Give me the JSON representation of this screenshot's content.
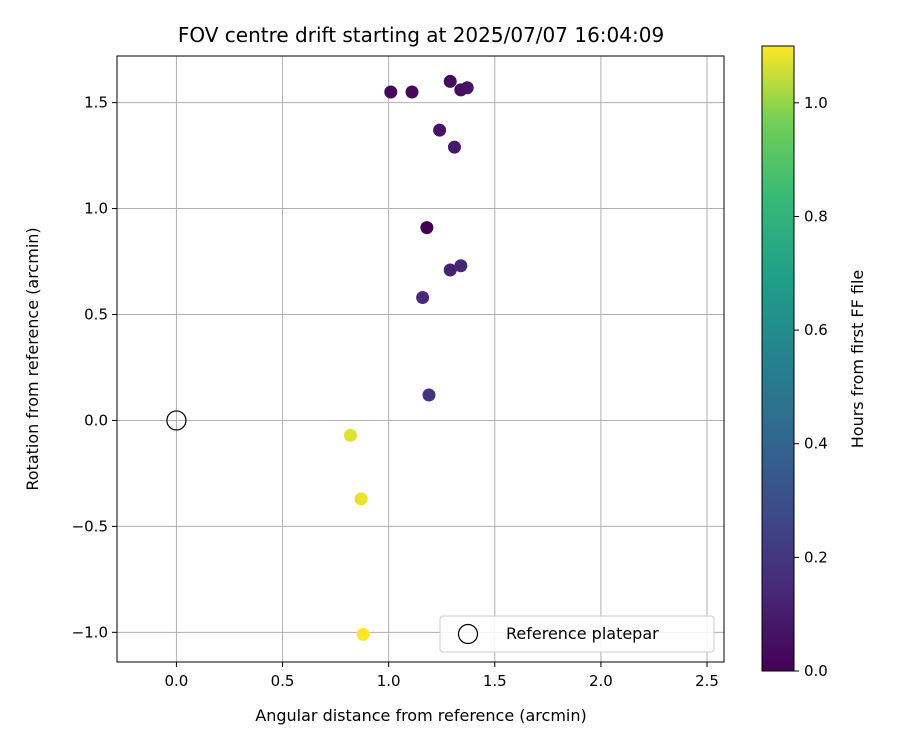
{
  "chart_data": {
    "type": "scatter",
    "title": "FOV centre drift starting at 2025/07/07 16:04:09",
    "xlabel": "Angular distance from reference (arcmin)",
    "ylabel": "Rotation from reference (arcmin)",
    "xlim": [
      -0.28,
      2.58
    ],
    "ylim": [
      -1.14,
      1.72
    ],
    "xticks": [
      0.0,
      0.5,
      1.0,
      1.5,
      2.0,
      2.5
    ],
    "xtick_labels": [
      "0.0",
      "0.5",
      "1.0",
      "1.5",
      "2.0",
      "2.5"
    ],
    "yticks": [
      -1.0,
      -0.5,
      0.0,
      0.5,
      1.0,
      1.5
    ],
    "ytick_labels": [
      "−1.0",
      "−0.5",
      "0.0",
      "0.5",
      "1.0",
      "1.5"
    ],
    "grid": true,
    "legend": {
      "placement": "lower right",
      "entries": [
        "Reference platepar"
      ]
    },
    "colorbar": {
      "label": "Hours from first FF file",
      "range": [
        0.0,
        1.1
      ],
      "colormap": "viridis",
      "ticks": [
        0.0,
        0.2,
        0.4,
        0.6,
        0.8,
        1.0
      ],
      "tick_labels": [
        "0.0",
        "0.2",
        "0.4",
        "0.6",
        "0.8",
        "1.0"
      ]
    },
    "reference": {
      "name": "Reference platepar",
      "x": 0.0,
      "y": 0.0
    },
    "points": [
      {
        "x": 1.18,
        "y": 0.91,
        "hours": 0.0
      },
      {
        "x": 1.01,
        "y": 1.55,
        "hours": 0.02
      },
      {
        "x": 1.11,
        "y": 1.55,
        "hours": 0.03
      },
      {
        "x": 1.29,
        "y": 1.6,
        "hours": 0.04
      },
      {
        "x": 1.34,
        "y": 1.56,
        "hours": 0.05
      },
      {
        "x": 1.37,
        "y": 1.57,
        "hours": 0.06
      },
      {
        "x": 1.24,
        "y": 1.37,
        "hours": 0.07
      },
      {
        "x": 1.31,
        "y": 1.29,
        "hours": 0.08
      },
      {
        "x": 1.29,
        "y": 0.71,
        "hours": 0.11
      },
      {
        "x": 1.34,
        "y": 0.73,
        "hours": 0.13
      },
      {
        "x": 1.16,
        "y": 0.58,
        "hours": 0.15
      },
      {
        "x": 1.19,
        "y": 0.12,
        "hours": 0.18
      },
      {
        "x": 0.82,
        "y": -0.07,
        "hours": 1.07
      },
      {
        "x": 0.87,
        "y": -0.37,
        "hours": 1.08
      },
      {
        "x": 0.88,
        "y": -1.01,
        "hours": 1.1
      }
    ]
  }
}
